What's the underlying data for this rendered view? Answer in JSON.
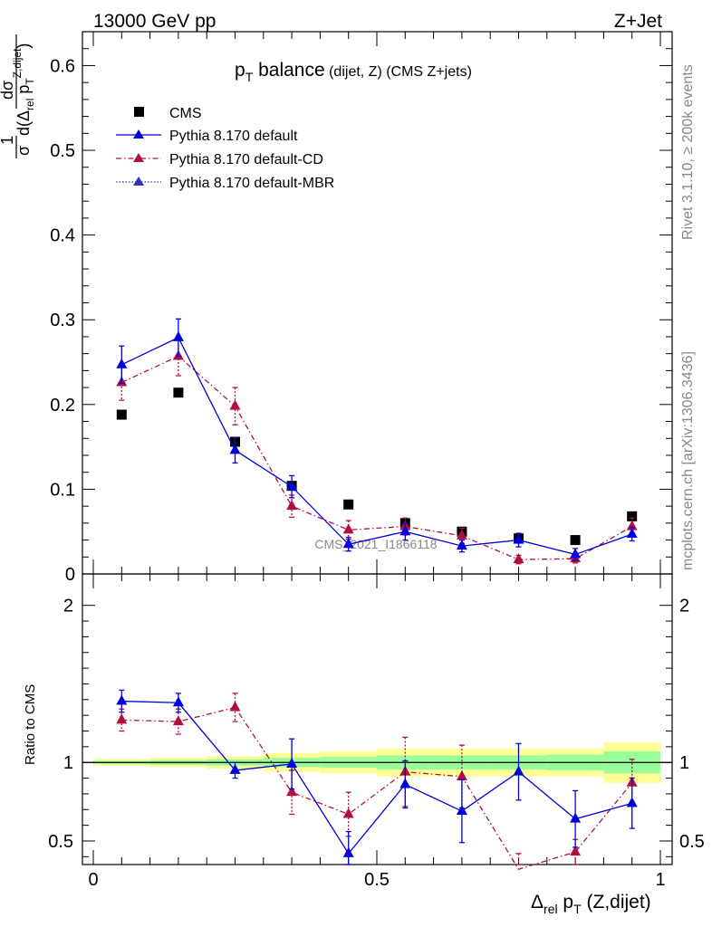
{
  "header": {
    "left": "13000 GeV pp",
    "right": "Z+Jet"
  },
  "side": {
    "rivet": "Rivet 3.1.10, ≥ 200k events",
    "mcplots": "mcplots.cern.ch [arXiv:1306.3436]"
  },
  "watermark": "CMS_2021_I1866118",
  "title": {
    "main": "p",
    "sub": "T",
    "rest": " balance",
    "small": " (dijet, Z) (CMS Z+jets)"
  },
  "axes": {
    "y_upper": {
      "prefix": "1",
      "sigma": "σ",
      "numer": "dσ",
      "denom": "d(Δ",
      "rel": "rel",
      "pT": " p",
      "T": "T",
      "sup": "Z,dijet",
      "close": ")"
    },
    "y_lower": "Ratio to CMS",
    "x": {
      "delta": "Δ",
      "rel": "rel",
      "p": " p",
      "T": "T",
      "rest": " (Z,dijet)"
    }
  },
  "legend": [
    {
      "label": "CMS",
      "color": "#000000"
    },
    {
      "label": "Pythia 8.170 default",
      "color": "#0000dd"
    },
    {
      "label": "Pythia 8.170 default-CD",
      "color": "#b01040"
    },
    {
      "label": "Pythia 8.170 default-MBR",
      "color": "#3030bb"
    }
  ],
  "chart_data": {
    "type": "line",
    "x_label": "Δrel pT (Z,dijet)",
    "xlim": [
      0,
      1
    ],
    "upper": {
      "ylim": [
        0,
        0.64
      ],
      "yticks": [
        0,
        0.1,
        0.2,
        0.3,
        0.4,
        0.5,
        0.6
      ],
      "ytick_labels": [
        "0",
        "0.1",
        "0.2",
        "0.3",
        "0.4",
        "0.5",
        "0.6"
      ]
    },
    "lower": {
      "ylim": [
        0.35,
        2.2
      ],
      "yticks": [
        0.5,
        1,
        2
      ],
      "ytick_labels": [
        "0.5",
        "1",
        "2"
      ]
    },
    "xticks": [
      0,
      0.5,
      1
    ],
    "xtick_labels": [
      "0",
      "0.5",
      "1"
    ],
    "x": [
      0.05,
      0.15,
      0.25,
      0.35,
      0.45,
      0.55,
      0.65,
      0.75,
      0.85,
      0.95
    ],
    "series": [
      {
        "name": "CMS",
        "values": [
          0.188,
          0.214,
          0.156,
          0.104,
          0.082,
          0.06,
          0.05,
          0.042,
          0.04,
          0.068
        ]
      },
      {
        "name": "Pythia 8.170 default",
        "values": [
          0.247,
          0.279,
          0.146,
          0.103,
          0.035,
          0.05,
          0.033,
          0.04,
          0.023,
          0.047
        ],
        "errors": [
          0.022,
          0.022,
          0.015,
          0.013,
          0.008,
          0.01,
          0.007,
          0.008,
          0.007,
          0.008
        ]
      },
      {
        "name": "Pythia 8.170 default-CD",
        "values": [
          0.226,
          0.257,
          0.198,
          0.08,
          0.052,
          0.056,
          0.045,
          0.017,
          0.018,
          0.056
        ],
        "errors": [
          0.021,
          0.023,
          0.022,
          0.013,
          0.011,
          0.01,
          0.009,
          0.005,
          0.005,
          0.01
        ]
      }
    ],
    "ratio_series": [
      {
        "name": "Pythia 8.170 default",
        "values": [
          1.39,
          1.38,
          0.95,
          0.99,
          0.42,
          0.86,
          0.69,
          0.94,
          0.64,
          0.74
        ],
        "errors": [
          0.07,
          0.06,
          0.05,
          0.16,
          0.14,
          0.15,
          0.2,
          0.18,
          0.18,
          0.16
        ]
      },
      {
        "name": "Pythia 8.170 default-CD",
        "values": [
          1.27,
          1.26,
          1.35,
          0.81,
          0.67,
          0.94,
          0.91,
          0.32,
          0.43,
          0.87
        ],
        "errors": [
          0.07,
          0.08,
          0.09,
          0.14,
          0.14,
          0.22,
          0.2,
          0.1,
          0.08,
          0.15
        ]
      }
    ],
    "ratio_bands": {
      "x_edges": [
        0.0,
        0.1,
        0.2,
        0.3,
        0.4,
        0.5,
        0.6,
        0.7,
        0.8,
        0.9,
        1.0
      ],
      "yellow_half": [
        0.02,
        0.03,
        0.04,
        0.06,
        0.07,
        0.09,
        0.09,
        0.09,
        0.09,
        0.13
      ],
      "green_half": [
        0.01,
        0.015,
        0.02,
        0.03,
        0.035,
        0.045,
        0.045,
        0.045,
        0.05,
        0.07
      ]
    }
  }
}
